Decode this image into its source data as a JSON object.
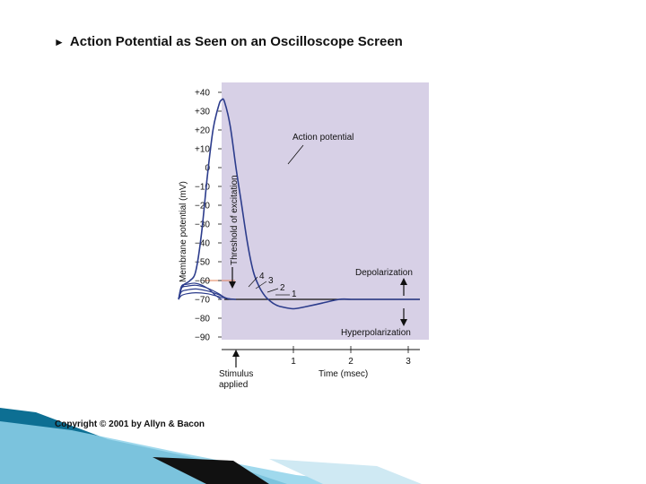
{
  "slide": {
    "title": "Action Potential as Seen on an Oscilloscope Screen",
    "bullet": "►",
    "copyright": "Copyright © 2001 by Allyn & Bacon"
  },
  "colors": {
    "plot_background": "#d7d0e6",
    "trace": "#2c3c8c",
    "threshold_line": "#e0805a",
    "ribbon_dark": "#0d6f93",
    "ribbon_light": "#8fd2ea"
  },
  "chart_data": {
    "type": "line",
    "title": "",
    "xlabel": "Time (msec)",
    "ylabel": "Membrane potential (mV)",
    "x_ticks": [
      "1",
      "2",
      "3"
    ],
    "x_tick_values": [
      1,
      2,
      3
    ],
    "y_ticks": [
      "+40",
      "+30",
      "+20",
      "+10",
      "0",
      "−10",
      "−20",
      "−30",
      "−40",
      "−50",
      "−60",
      "−70",
      "−80",
      "−90"
    ],
    "y_tick_values": [
      40,
      30,
      20,
      10,
      0,
      -10,
      -20,
      -30,
      -40,
      -50,
      -60,
      -70,
      -80,
      -90
    ],
    "xlim": [
      -1.1,
      3.2
    ],
    "ylim": [
      -95,
      44
    ],
    "grid": false,
    "threshold_mV": -60,
    "resting_mV": -70,
    "stimulus_time": -1.0,
    "series": [
      {
        "name": "Action potential",
        "x": [
          -1.0,
          -0.95,
          -0.9,
          -0.8,
          -0.7,
          -0.6,
          -0.5,
          -0.4,
          -0.3,
          -0.25,
          -0.2,
          -0.1,
          0.0,
          0.1,
          0.2,
          0.3,
          0.4,
          0.5,
          0.6,
          0.7,
          0.8,
          1.0,
          1.2,
          1.5,
          1.8,
          2.0,
          2.2,
          2.5,
          2.8,
          3.2
        ],
        "y": [
          -70,
          -64,
          -62,
          -60,
          -55,
          -35,
          -5,
          20,
          33,
          36,
          35,
          22,
          0,
          -20,
          -40,
          -55,
          -63,
          -68,
          -71,
          -73,
          -74,
          -75,
          -74,
          -72,
          -70,
          -70,
          -70,
          -70,
          -70,
          -70
        ]
      },
      {
        "name": "1",
        "x": [
          -1.0,
          -0.95,
          -0.85,
          -0.7,
          -0.5,
          -0.3,
          -0.1,
          0.0
        ],
        "y": [
          -70,
          -68,
          -67,
          -66.5,
          -67,
          -68.5,
          -69.8,
          -70
        ]
      },
      {
        "name": "2",
        "x": [
          -1.0,
          -0.95,
          -0.85,
          -0.7,
          -0.5,
          -0.3,
          -0.15,
          0.0
        ],
        "y": [
          -70,
          -66,
          -65,
          -64.5,
          -65.5,
          -67.5,
          -69.5,
          -70
        ]
      },
      {
        "name": "3",
        "x": [
          -1.0,
          -0.95,
          -0.85,
          -0.7,
          -0.5,
          -0.3,
          -0.2,
          -0.1
        ],
        "y": [
          -70,
          -64,
          -63,
          -62.5,
          -64,
          -67,
          -69,
          -70
        ]
      },
      {
        "name": "4",
        "x": [
          -1.0,
          -0.95,
          -0.85,
          -0.7,
          -0.5,
          -0.35,
          -0.25
        ],
        "y": [
          -70,
          -63,
          -62,
          -61.5,
          -64,
          -68,
          -70
        ]
      }
    ],
    "annotations": {
      "action_potential": "Action potential",
      "threshold": "Threshold of excitation",
      "depolarization": "Depolarization",
      "hyperpolarization": "Hyperpolarization",
      "stimulus_line1": "Stimulus",
      "stimulus_line2": "applied"
    }
  }
}
